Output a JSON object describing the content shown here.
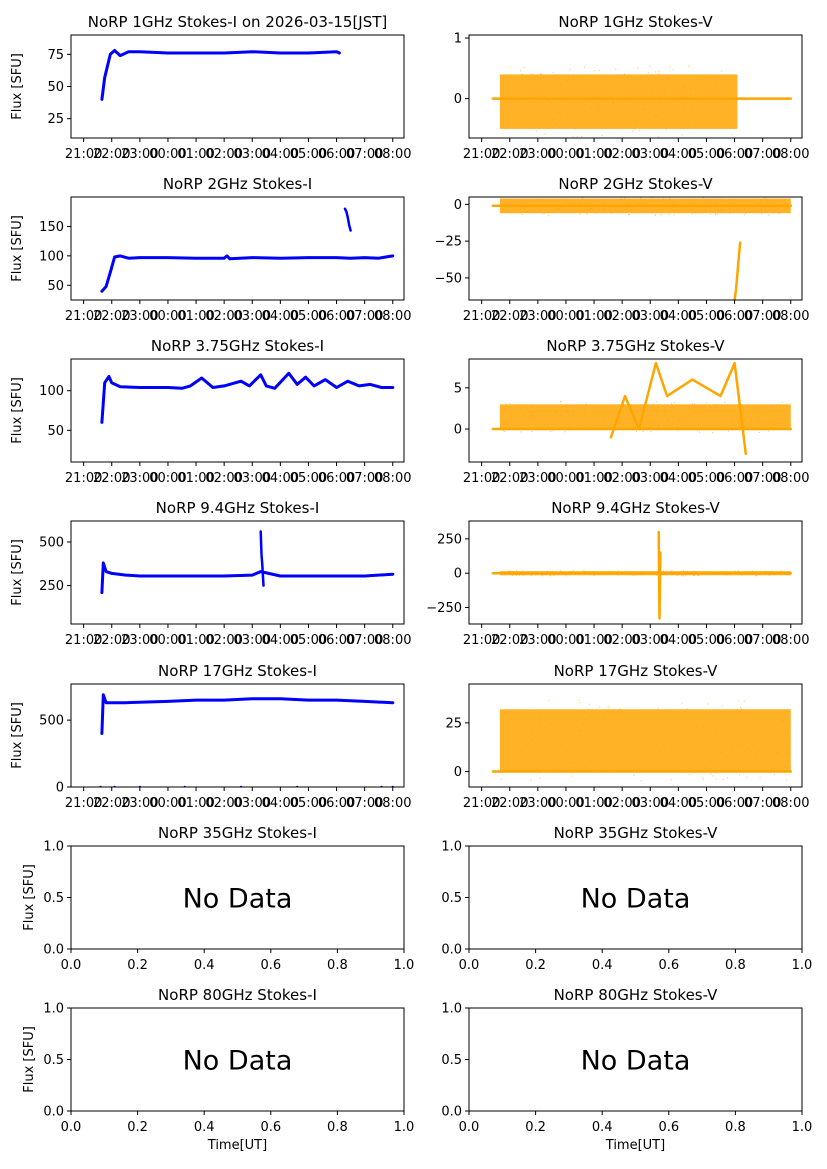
{
  "figure": {
    "x_tick_labels": [
      "21:00",
      "22:00",
      "23:00",
      "00:00",
      "01:00",
      "02:00",
      "03:00",
      "04:00",
      "05:00",
      "06:00",
      "07:00",
      "08:00"
    ],
    "y_label": "Flux [SFU]",
    "x_label": "Time[UT]",
    "colors": {
      "stokes_i": "#0000ff",
      "stokes_v": "#ffa500",
      "axes": "#000000"
    }
  },
  "chart_data": [
    {
      "type": "scatter",
      "title": "NoRP 1GHz Stokes-I on 2026-03-15[JST]",
      "ylabel": "Flux [SFU]",
      "xlabel": "",
      "color": "#0000ff",
      "xlim": [
        -0.45,
        11.4
      ],
      "ylim": [
        10,
        90
      ],
      "y_ticks": [
        25,
        50,
        75
      ],
      "y_tick_labels": [
        "25",
        "50",
        "75"
      ],
      "x_data_range": [
        0.65,
        9.1
      ],
      "series": [
        {
          "name": "Stokes-I",
          "x": [
            0.65,
            0.75,
            0.85,
            0.95,
            1.1,
            1.3,
            1.6,
            2,
            3,
            4,
            5,
            6,
            7,
            8,
            9,
            9.1
          ],
          "y": [
            40,
            57,
            66,
            75,
            78,
            74,
            77,
            77,
            76,
            76,
            76,
            77,
            76,
            76,
            77,
            76
          ]
        }
      ]
    },
    {
      "type": "scatter",
      "title": "NoRP 1GHz Stokes-V",
      "ylabel": "",
      "xlabel": "",
      "color": "#ffa500",
      "xlim": [
        -0.45,
        11.4
      ],
      "ylim": [
        -0.65,
        1.05
      ],
      "y_ticks": [
        0,
        1
      ],
      "y_tick_labels": [
        "0",
        "1"
      ],
      "x_data_range": [
        0.4,
        11.0
      ],
      "noise_band": [
        -0.5,
        0.4
      ],
      "noise_x_range": [
        0.65,
        9.1
      ],
      "series": [
        {
          "name": "Stokes-V",
          "x": [
            0.4,
            11.0
          ],
          "y": [
            0,
            0
          ]
        }
      ]
    },
    {
      "type": "scatter",
      "title": "NoRP 2GHz Stokes-I",
      "ylabel": "Flux [SFU]",
      "xlabel": "",
      "color": "#0000ff",
      "xlim": [
        -0.45,
        11.4
      ],
      "ylim": [
        25,
        200
      ],
      "y_ticks": [
        50,
        100,
        150
      ],
      "y_tick_labels": [
        "50",
        "100",
        "150"
      ],
      "x_data_range": [
        0.65,
        11.0
      ],
      "series": [
        {
          "name": "Stokes-I",
          "x": [
            0.65,
            0.8,
            0.95,
            1.1,
            1.3,
            1.6,
            2,
            3,
            4,
            5,
            5.1,
            5.2,
            6,
            7,
            8,
            9,
            9.5,
            10,
            10.5,
            11.0
          ],
          "y": [
            40,
            48,
            72,
            98,
            100,
            96,
            97,
            97,
            96,
            96,
            100,
            95,
            97,
            96,
            97,
            97,
            96,
            97,
            96,
            100
          ]
        },
        {
          "name": "Spike",
          "x": [
            9.3,
            9.35,
            9.4,
            9.45,
            9.5
          ],
          "y": [
            180,
            175,
            165,
            152,
            143
          ]
        }
      ]
    },
    {
      "type": "scatter",
      "title": "NoRP 2GHz Stokes-V",
      "ylabel": "",
      "xlabel": "",
      "color": "#ffa500",
      "xlim": [
        -0.45,
        11.4
      ],
      "ylim": [
        -65,
        5
      ],
      "y_ticks": [
        -50,
        -25,
        0
      ],
      "y_tick_labels": [
        "−50",
        "−25",
        "0"
      ],
      "x_data_range": [
        0.4,
        11.0
      ],
      "noise_band": [
        -6,
        4
      ],
      "noise_x_range": [
        0.65,
        11.0
      ],
      "series": [
        {
          "name": "Stokes-V",
          "x": [
            0.4,
            11.0
          ],
          "y": [
            -1,
            -1
          ]
        },
        {
          "name": "Dip",
          "x": [
            9.0,
            9.05,
            9.1,
            9.15,
            9.2
          ],
          "y": [
            -65,
            -58,
            -47,
            -36,
            -26
          ]
        }
      ]
    },
    {
      "type": "scatter",
      "title": "NoRP 3.75GHz Stokes-I",
      "ylabel": "Flux [SFU]",
      "xlabel": "",
      "color": "#0000ff",
      "xlim": [
        -0.45,
        11.4
      ],
      "ylim": [
        10,
        140
      ],
      "y_ticks": [
        50,
        100
      ],
      "y_tick_labels": [
        "50",
        "100"
      ],
      "x_data_range": [
        0.65,
        11.0
      ],
      "series": [
        {
          "name": "Stokes-I",
          "x": [
            0.65,
            0.75,
            0.9,
            1.0,
            1.3,
            2,
            3,
            3.5,
            3.8,
            4.2,
            4.6,
            5.0,
            5.6,
            5.9,
            6.3,
            6.5,
            6.8,
            7.3,
            7.6,
            7.9,
            8.2,
            8.6,
            9.0,
            9.4,
            9.8,
            10.2,
            10.6,
            11.0
          ],
          "y": [
            60,
            110,
            118,
            110,
            105,
            104,
            104,
            103,
            106,
            116,
            104,
            106,
            112,
            106,
            120,
            106,
            103,
            122,
            108,
            117,
            106,
            114,
            104,
            112,
            106,
            108,
            104,
            104
          ]
        }
      ]
    },
    {
      "type": "scatter",
      "title": "NoRP 3.75GHz Stokes-V",
      "ylabel": "",
      "xlabel": "",
      "color": "#ffa500",
      "xlim": [
        -0.45,
        11.4
      ],
      "ylim": [
        -4,
        8.5
      ],
      "y_ticks": [
        0,
        5
      ],
      "y_tick_labels": [
        "0",
        "5"
      ],
      "x_data_range": [
        0.4,
        11.0
      ],
      "noise_band": [
        0,
        3
      ],
      "noise_x_range": [
        0.65,
        11.0
      ],
      "series": [
        {
          "name": "Stokes-V",
          "x": [
            0.4,
            11.0
          ],
          "y": [
            0,
            0
          ]
        },
        {
          "name": "Events",
          "x": [
            4.6,
            5.1,
            5.6,
            6.2,
            6.6,
            7.5,
            8.0,
            8.5,
            9.0,
            9.4
          ],
          "y": [
            -1,
            4,
            0,
            8,
            4,
            6,
            5,
            4,
            8,
            -3
          ]
        }
      ]
    },
    {
      "type": "scatter",
      "title": "NoRP 9.4GHz Stokes-I",
      "ylabel": "Flux [SFU]",
      "xlabel": "",
      "color": "#0000ff",
      "xlim": [
        -0.45,
        11.4
      ],
      "ylim": [
        30,
        620
      ],
      "y_ticks": [
        250,
        500
      ],
      "y_tick_labels": [
        "250",
        "500"
      ],
      "x_data_range": [
        0.65,
        11.0
      ],
      "series": [
        {
          "name": "Stokes-I",
          "x": [
            0.65,
            0.7,
            0.8,
            1.0,
            1.5,
            2,
            3,
            4,
            5,
            6,
            6.3,
            7,
            8,
            9,
            10,
            11.0
          ],
          "y": [
            210,
            380,
            330,
            320,
            310,
            305,
            305,
            305,
            305,
            310,
            330,
            305,
            305,
            305,
            305,
            315
          ]
        },
        {
          "name": "Spike",
          "x": [
            6.3,
            6.33,
            6.36,
            6.4
          ],
          "y": [
            560,
            430,
            360,
            250
          ]
        }
      ]
    },
    {
      "type": "scatter",
      "title": "NoRP 9.4GHz Stokes-V",
      "ylabel": "",
      "xlabel": "",
      "color": "#ffa500",
      "xlim": [
        -0.45,
        11.4
      ],
      "ylim": [
        -370,
        380
      ],
      "y_ticks": [
        -250,
        0,
        250
      ],
      "y_tick_labels": [
        "−250",
        "0",
        "250"
      ],
      "x_data_range": [
        0.4,
        11.0
      ],
      "noise_band": [
        -15,
        15
      ],
      "noise_x_range": [
        0.65,
        11.0
      ],
      "series": [
        {
          "name": "Stokes-V",
          "x": [
            0.4,
            11.0
          ],
          "y": [
            0,
            0
          ]
        },
        {
          "name": "Spike",
          "x": [
            6.3,
            6.33,
            6.36
          ],
          "y": [
            300,
            -330,
            150
          ]
        }
      ]
    },
    {
      "type": "scatter",
      "title": "NoRP 17GHz Stokes-I",
      "ylabel": "Flux [SFU]",
      "xlabel": "",
      "color": "#0000ff",
      "xlim": [
        -0.45,
        11.4
      ],
      "ylim": [
        0,
        770
      ],
      "y_ticks": [
        0,
        500
      ],
      "y_tick_labels": [
        "0",
        "500"
      ],
      "x_data_range": [
        0.65,
        11.0
      ],
      "series": [
        {
          "name": "Stokes-I",
          "x": [
            0.65,
            0.7,
            0.8,
            1.5,
            3,
            4,
            5,
            6,
            7,
            8,
            9,
            10,
            11.0
          ],
          "y": [
            400,
            690,
            630,
            630,
            640,
            650,
            650,
            660,
            660,
            650,
            650,
            640,
            630
          ]
        },
        {
          "name": "Baseline",
          "x": [
            0.6,
            1.1,
            2.0,
            3.6,
            5.6,
            7.6,
            10.6,
            11.0
          ],
          "y": [
            0,
            0,
            0,
            0,
            0,
            0,
            0,
            0
          ]
        }
      ]
    },
    {
      "type": "scatter",
      "title": "NoRP 17GHz Stokes-V",
      "ylabel": "",
      "xlabel": "",
      "color": "#ffa500",
      "xlim": [
        -0.45,
        11.4
      ],
      "ylim": [
        -8,
        45
      ],
      "y_ticks": [
        0,
        25
      ],
      "y_tick_labels": [
        "0",
        "25"
      ],
      "x_data_range": [
        0.4,
        11.0
      ],
      "noise_band": [
        0,
        32
      ],
      "noise_x_range": [
        0.65,
        11.0
      ],
      "series": [
        {
          "name": "Stokes-V",
          "x": [
            0.4,
            11.0
          ],
          "y": [
            0,
            0
          ]
        }
      ]
    },
    {
      "type": "empty",
      "title": "NoRP 35GHz Stokes-I",
      "ylabel": "Flux [SFU]",
      "xlabel": "",
      "xlim": [
        0,
        1
      ],
      "ylim": [
        0,
        1
      ],
      "message": "No Data",
      "x_ticks": [
        0,
        0.2,
        0.4,
        0.6,
        0.8,
        1.0
      ],
      "x_tick_labels": [
        "0.0",
        "0.2",
        "0.4",
        "0.6",
        "0.8",
        "1.0"
      ],
      "y_ticks": [
        0,
        0.5,
        1.0
      ],
      "y_tick_labels": [
        "0.0",
        "0.5",
        "1.0"
      ]
    },
    {
      "type": "empty",
      "title": "NoRP 35GHz Stokes-V",
      "ylabel": "",
      "xlabel": "",
      "xlim": [
        0,
        1
      ],
      "ylim": [
        0,
        1
      ],
      "message": "No Data",
      "x_ticks": [
        0,
        0.2,
        0.4,
        0.6,
        0.8,
        1.0
      ],
      "x_tick_labels": [
        "0.0",
        "0.2",
        "0.4",
        "0.6",
        "0.8",
        "1.0"
      ],
      "y_ticks": [
        0,
        0.5,
        1.0
      ],
      "y_tick_labels": [
        "0.0",
        "0.5",
        "1.0"
      ]
    },
    {
      "type": "empty",
      "title": "NoRP 80GHz Stokes-I",
      "ylabel": "Flux [SFU]",
      "xlabel": "Time[UT]",
      "xlim": [
        0,
        1
      ],
      "ylim": [
        0,
        1
      ],
      "message": "No Data",
      "x_ticks": [
        0,
        0.2,
        0.4,
        0.6,
        0.8,
        1.0
      ],
      "x_tick_labels": [
        "0.0",
        "0.2",
        "0.4",
        "0.6",
        "0.8",
        "1.0"
      ],
      "y_ticks": [
        0,
        0.5,
        1.0
      ],
      "y_tick_labels": [
        "0.0",
        "0.5",
        "1.0"
      ]
    },
    {
      "type": "empty",
      "title": "NoRP 80GHz Stokes-V",
      "ylabel": "",
      "xlabel": "Time[UT]",
      "xlim": [
        0,
        1
      ],
      "ylim": [
        0,
        1
      ],
      "message": "No Data",
      "x_ticks": [
        0,
        0.2,
        0.4,
        0.6,
        0.8,
        1.0
      ],
      "x_tick_labels": [
        "0.0",
        "0.2",
        "0.4",
        "0.6",
        "0.8",
        "1.0"
      ],
      "y_ticks": [
        0,
        0.5,
        1.0
      ],
      "y_tick_labels": [
        "0.0",
        "0.5",
        "1.0"
      ]
    }
  ]
}
